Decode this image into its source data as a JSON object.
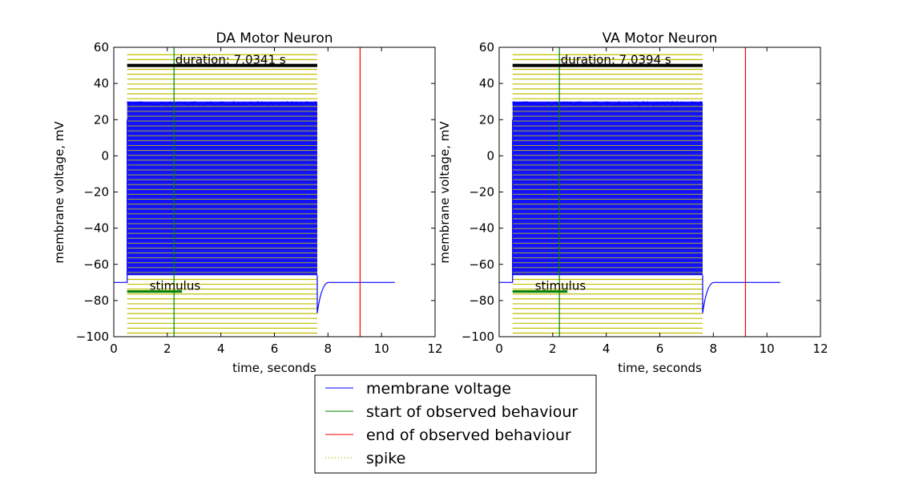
{
  "chart_data": [
    {
      "type": "line",
      "title": "DA Motor Neuron",
      "xlabel": "time, seconds",
      "ylabel": "membrane voltage, mV",
      "xlim": [
        0,
        12
      ],
      "ylim": [
        -100,
        60
      ],
      "xticks": [
        0,
        2,
        4,
        6,
        8,
        10,
        12
      ],
      "yticks": [
        60,
        40,
        20,
        0,
        -20,
        -40,
        -60,
        -80,
        -100
      ],
      "spike_window": [
        0.5,
        7.6
      ],
      "spike_peak": 30,
      "spike_trough": -66,
      "resting_before": -70,
      "resting_after": -70,
      "rebound_min": -87,
      "trace_end": 10.5,
      "start_observed": 2.25,
      "end_observed": 9.2,
      "duration_bar": {
        "x": [
          0.5,
          7.6
        ],
        "y": 50
      },
      "duration_label": "duration: 7.0341 s",
      "stimulus_bar": {
        "x": [
          0.5,
          2.55
        ],
        "y": -75
      },
      "stimulus_label": "stimulus"
    },
    {
      "type": "line",
      "title": "VA Motor Neuron",
      "xlabel": "time, seconds",
      "ylabel": "membrane voltage, mV",
      "xlim": [
        0,
        12
      ],
      "ylim": [
        -100,
        60
      ],
      "xticks": [
        0,
        2,
        4,
        6,
        8,
        10,
        12
      ],
      "yticks": [
        60,
        40,
        20,
        0,
        -20,
        -40,
        -60,
        -80,
        -100
      ],
      "spike_window": [
        0.5,
        7.6
      ],
      "spike_peak": 30,
      "spike_trough": -66,
      "resting_before": -70,
      "resting_after": -70,
      "rebound_min": -87,
      "trace_end": 10.5,
      "start_observed": 2.25,
      "end_observed": 9.2,
      "duration_bar": {
        "x": [
          0.5,
          7.6
        ],
        "y": 50
      },
      "duration_label": "duration: 7.0394 s",
      "stimulus_bar": {
        "x": [
          0.5,
          2.55
        ],
        "y": -75
      },
      "stimulus_label": "stimulus"
    }
  ],
  "legend": {
    "placement": "bottom-center",
    "items": [
      {
        "label": "membrane voltage",
        "color": "#0000ff",
        "style": "solid"
      },
      {
        "label": "start of observed behaviour",
        "color": "#008000",
        "style": "solid"
      },
      {
        "label": "end of observed behaviour",
        "color": "#ff0000",
        "style": "solid"
      },
      {
        "label": "spike",
        "color": "#bfbf00",
        "style": "dotted"
      }
    ]
  },
  "colors": {
    "trace": "#0000ff",
    "spike": "#bfbf00",
    "start": "#008000",
    "end": "#ff0000",
    "stimulus": "#008000",
    "duration": "#000000"
  }
}
